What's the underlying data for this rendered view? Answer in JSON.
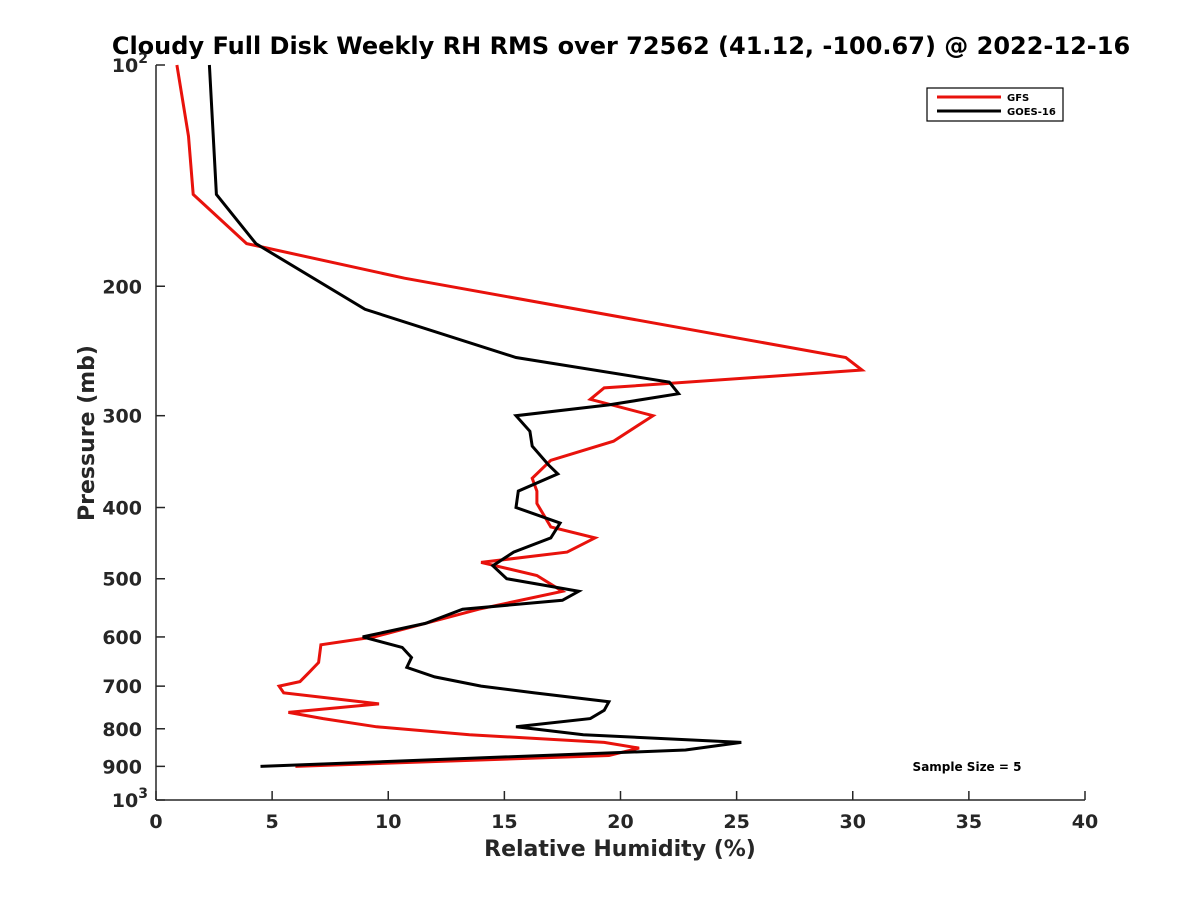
{
  "chart_data": {
    "type": "line",
    "title": "Cloudy Full Disk Weekly RH RMS over 72562 (41.12, -100.67) @ 2022-12-16",
    "xlabel": "Relative Humidity (%)",
    "ylabel": "Pressure (mb)",
    "xlim": [
      0,
      40
    ],
    "ylim": [
      100,
      1000
    ],
    "yscale": "log",
    "y_reversed": true,
    "grid": false,
    "legend_position": "top-right",
    "x_ticks": [
      "0",
      "5",
      "10",
      "15",
      "20",
      "25",
      "30",
      "35",
      "40"
    ],
    "y_ticks": [
      {
        "value": 100,
        "base": "10",
        "exp": "2",
        "label": ""
      },
      {
        "value": 200,
        "label": "200"
      },
      {
        "value": 300,
        "label": "300"
      },
      {
        "value": 400,
        "label": "400"
      },
      {
        "value": 500,
        "label": "500"
      },
      {
        "value": 600,
        "label": "600"
      },
      {
        "value": 700,
        "label": "700"
      },
      {
        "value": 800,
        "label": "800"
      },
      {
        "value": 900,
        "label": "900"
      },
      {
        "value": 1000,
        "base": "10",
        "exp": "3",
        "label": ""
      }
    ],
    "annotation": "Sample Size = 5",
    "series": [
      {
        "name": "GFS",
        "color": "#e8120c",
        "points": [
          [
            0.9,
            100
          ],
          [
            1.4,
            125
          ],
          [
            1.6,
            150
          ],
          [
            3.9,
            175
          ],
          [
            10.7,
            195
          ],
          [
            29.7,
            250
          ],
          [
            30.4,
            260
          ],
          [
            19.3,
            275
          ],
          [
            18.7,
            285
          ],
          [
            21.4,
            300
          ],
          [
            19.7,
            325
          ],
          [
            17.0,
            345
          ],
          [
            16.2,
            365
          ],
          [
            16.4,
            380
          ],
          [
            16.4,
            395
          ],
          [
            17.0,
            425
          ],
          [
            18.9,
            440
          ],
          [
            17.7,
            460
          ],
          [
            14.0,
            475
          ],
          [
            16.4,
            495
          ],
          [
            17.5,
            520
          ],
          [
            13.9,
            550
          ],
          [
            9.4,
            600
          ],
          [
            7.1,
            615
          ],
          [
            7.0,
            650
          ],
          [
            6.6,
            670
          ],
          [
            6.2,
            690
          ],
          [
            5.3,
            700
          ],
          [
            5.5,
            715
          ],
          [
            9.6,
            740
          ],
          [
            5.7,
            760
          ],
          [
            7.2,
            775
          ],
          [
            9.5,
            795
          ],
          [
            13.5,
            815
          ],
          [
            19.3,
            835
          ],
          [
            20.8,
            850
          ],
          [
            19.5,
            870
          ],
          [
            6.0,
            900
          ]
        ]
      },
      {
        "name": "GOES-16",
        "color": "#000000",
        "points": [
          [
            2.3,
            100
          ],
          [
            2.6,
            150
          ],
          [
            4.3,
            175
          ],
          [
            9.0,
            215
          ],
          [
            15.5,
            250
          ],
          [
            22.1,
            270
          ],
          [
            22.5,
            280
          ],
          [
            19.5,
            290
          ],
          [
            15.5,
            300
          ],
          [
            16.1,
            315
          ],
          [
            16.2,
            330
          ],
          [
            16.9,
            350
          ],
          [
            17.3,
            360
          ],
          [
            15.6,
            380
          ],
          [
            15.5,
            400
          ],
          [
            17.4,
            420
          ],
          [
            17.0,
            440
          ],
          [
            15.4,
            460
          ],
          [
            14.5,
            480
          ],
          [
            15.1,
            500
          ],
          [
            18.2,
            520
          ],
          [
            17.5,
            535
          ],
          [
            13.2,
            550
          ],
          [
            11.6,
            575
          ],
          [
            8.9,
            600
          ],
          [
            10.6,
            620
          ],
          [
            11.0,
            640
          ],
          [
            10.8,
            660
          ],
          [
            12.0,
            680
          ],
          [
            14.0,
            700
          ],
          [
            16.3,
            715
          ],
          [
            19.5,
            735
          ],
          [
            19.3,
            755
          ],
          [
            18.7,
            775
          ],
          [
            15.5,
            795
          ],
          [
            18.4,
            815
          ],
          [
            25.2,
            835
          ],
          [
            22.8,
            855
          ],
          [
            4.5,
            900
          ]
        ]
      }
    ]
  }
}
